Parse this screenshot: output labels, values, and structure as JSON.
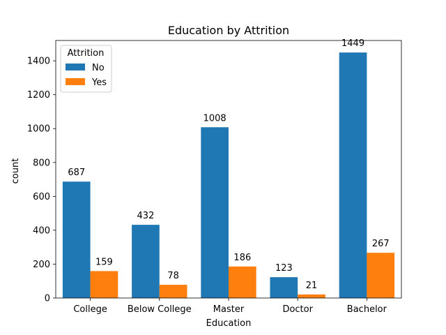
{
  "chart_data": {
    "type": "bar",
    "title": "Education by Attrition",
    "xlabel": "Education",
    "ylabel": "count",
    "categories": [
      "College",
      "Below College",
      "Master",
      "Doctor",
      "Bachelor"
    ],
    "series": [
      {
        "name": "No",
        "color": "#1f77b4",
        "values": [
          687,
          432,
          1008,
          123,
          1449
        ]
      },
      {
        "name": "Yes",
        "color": "#ff7f0e",
        "values": [
          159,
          78,
          186,
          21,
          267
        ]
      }
    ],
    "ylim": [
      0,
      1520
    ],
    "yticks": [
      0,
      200,
      400,
      600,
      800,
      1000,
      1200,
      1400
    ],
    "grid": false,
    "legend": {
      "title": "Attrition",
      "position": "top-left"
    }
  }
}
